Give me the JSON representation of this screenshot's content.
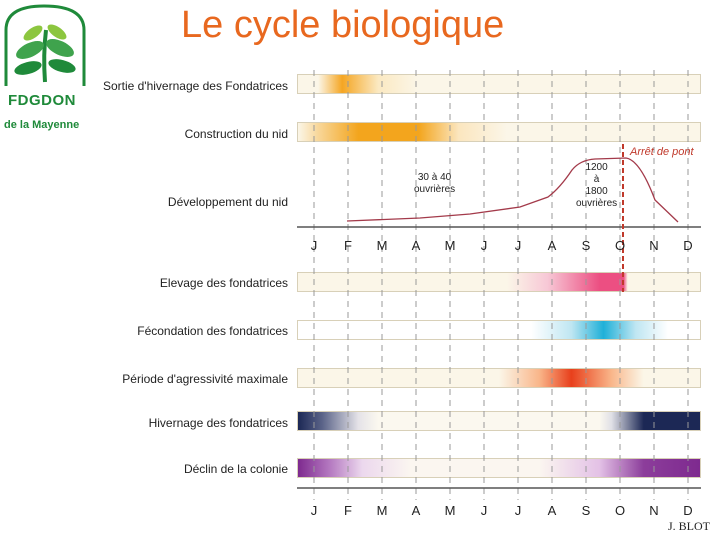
{
  "title": "Le cycle biologique",
  "logo": {
    "name": "FDGDON",
    "subtitle": "de la Mayenne"
  },
  "months": [
    "J",
    "F",
    "M",
    "A",
    "M",
    "J",
    "J",
    "A",
    "S",
    "O",
    "N",
    "D"
  ],
  "rows": [
    {
      "id": "sortie",
      "label": "Sortie d'hivernage des Fondatrices",
      "gradient": "linear-gradient(to right,#fbf6e8 0%,#fbf6e8 5%,#f5a623 11%,#fbe9c2 20%,#fbf6e8 30%,#fbf6e8 100%)"
    },
    {
      "id": "construction",
      "label": "Construction du nid",
      "gradient": "linear-gradient(to right,#fbf6e8 0%,#f8d79a 5%,#f3a51d 15%,#f3a51d 30%,#fbe6bf 40%,#fbf6e8 52%,#fbf6e8 100%)"
    },
    {
      "id": "elevage",
      "label": "Elevage des fondatrices",
      "gradient": "linear-gradient(to right,#fbf6e8 0%,#fbf6e8 52%,#f7c8d6 62%,#ec4f82 75%,#ec4f82 81%,#fbf6e8 82%,#fbf6e8 100%)"
    },
    {
      "id": "fecondation",
      "label": "Fécondation des fondatrices",
      "gradient": "linear-gradient(to right,#ffffff 0%,#ffffff 58%,#bfe6f2 68%,#1fb0d8 76%,#bfe6f2 84%,#ffffff 92%,#ffffff 100%)"
    },
    {
      "id": "agressivite",
      "label": "Période d'agressivité maximale",
      "gradient": "linear-gradient(to right,#fbf6e8 0%,#fbf6e8 50%,#f9b68a 60%,#e8401c 68%,#f9b68a 78%,#fbf6e8 86%,#fbf6e8 100%)"
    },
    {
      "id": "hivernage",
      "label": "Hivernage des fondatrices",
      "gradient": "linear-gradient(to right,#1c2855 0%,#5a6388 6%,#e5e3e8 15%,#fbf8ef 20%,#fbf8ef 75%,#e0e0e6 78%,#1c2855 86%,#1c2855 100%)"
    },
    {
      "id": "declin",
      "label": "Déclin de la colonie",
      "gradient": "linear-gradient(to right,#7e2a8f 0%,#b57ac1 8%,#ecd8ee 16%,#fbf6f0 28%,#fbf6f0 60%,#e3c1e6 75%,#8c3d9b 86%,#7e2a8f 100%)"
    }
  ],
  "developpement": {
    "label": "Développement du nid",
    "note_ouvrieres_1": "30 à 40\nouvrières",
    "note_ouvrieres_2": "1200\nà\n1800\nouvrières",
    "arret": "Arrêt de pont"
  },
  "credit": "J. BLOT",
  "colors": {
    "title": "#e8681f",
    "logo_green": "#1f8a3a",
    "arret_red": "#c0392b"
  }
}
